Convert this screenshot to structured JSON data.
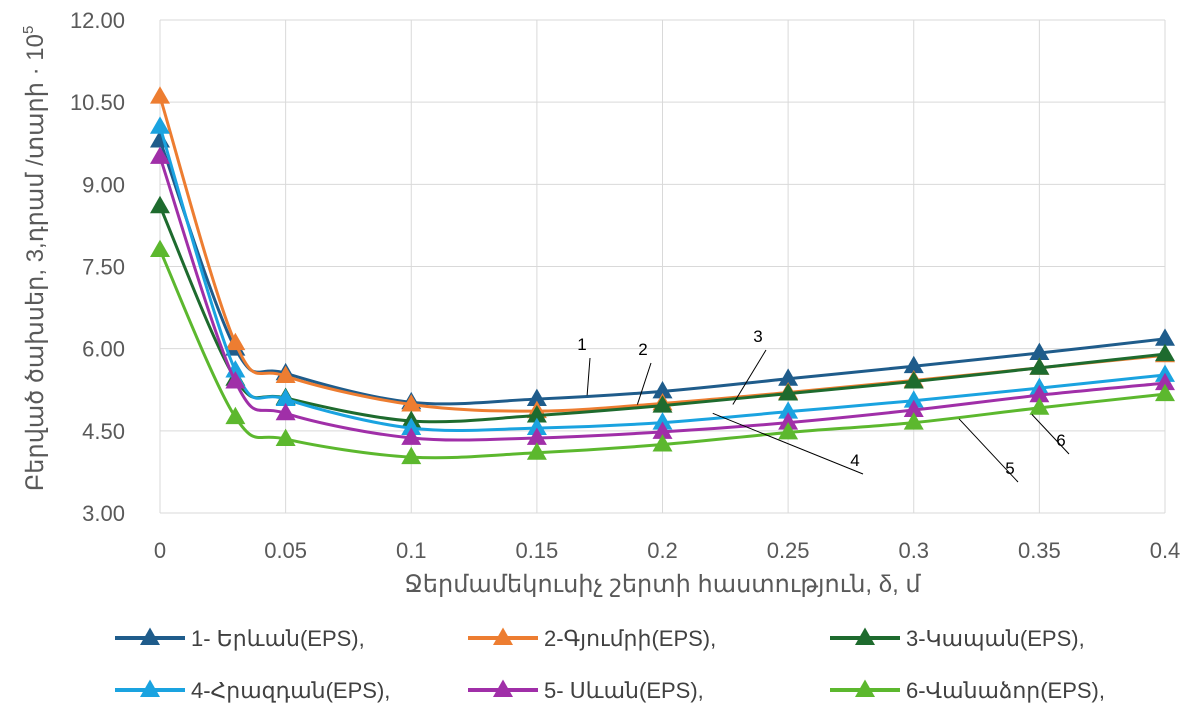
{
  "chart_data": {
    "type": "line",
    "xlabel": "Ջերմամեկուսիչ շերտի հաստություն, δ, մ",
    "ylabel": "Բերված ծախսեր, 3,դրամ /տարի · 10",
    "ylabel_exponent": "5",
    "xlim": [
      0,
      0.4
    ],
    "ylim": [
      3.0,
      12.0
    ],
    "x_ticks": [
      "0",
      "0.05",
      "0.1",
      "0.15",
      "0.2",
      "0.25",
      "0.3",
      "0.35",
      "0.4"
    ],
    "y_ticks": [
      "3.00",
      "4.50",
      "6.00",
      "7.50",
      "9.00",
      "10.50",
      "12.00"
    ],
    "grid": "on",
    "legend_position": "bottom",
    "x": [
      0,
      0.03,
      0.05,
      0.1,
      0.15,
      0.2,
      0.25,
      0.3,
      0.35,
      0.4
    ],
    "series": [
      {
        "name": "1- Երևան(EPS),",
        "color": "#1f5c8b",
        "values": [
          9.8,
          6.0,
          5.55,
          5.02,
          5.08,
          5.22,
          5.45,
          5.68,
          5.92,
          6.18
        ]
      },
      {
        "name": "2-Գյումրի(EPS),",
        "color": "#ed7d31",
        "values": [
          10.6,
          6.1,
          5.5,
          4.98,
          4.86,
          5.0,
          5.2,
          5.42,
          5.65,
          5.88
        ]
      },
      {
        "name": "3-Կապան(EPS),",
        "color": "#1e6b2e",
        "values": [
          8.6,
          5.45,
          5.1,
          4.68,
          4.78,
          4.96,
          5.18,
          5.4,
          5.65,
          5.9
        ]
      },
      {
        "name": "4-Հրազդան(EPS),",
        "color": "#1aa3e0",
        "values": [
          10.05,
          5.6,
          5.08,
          4.55,
          4.55,
          4.65,
          4.85,
          5.05,
          5.28,
          5.52
        ]
      },
      {
        "name": "5- Սևան(EPS),",
        "color": "#a02fa8",
        "values": [
          9.5,
          5.4,
          4.82,
          4.37,
          4.37,
          4.48,
          4.65,
          4.88,
          5.15,
          5.37
        ]
      },
      {
        "name": "6-Վանաձոր(EPS),",
        "color": "#5cb82e",
        "values": [
          7.8,
          4.75,
          4.35,
          4.02,
          4.1,
          4.25,
          4.47,
          4.65,
          4.92,
          5.17
        ]
      }
    ],
    "annotations": [
      {
        "text": "1",
        "x": 0.17,
        "y": 5.15
      },
      {
        "text": "2",
        "x": 0.19,
        "y": 4.98
      },
      {
        "text": "3",
        "x": 0.228,
        "y": 4.98
      },
      {
        "text": "4",
        "x": 0.22,
        "y": 4.82
      },
      {
        "text": "5",
        "x": 0.318,
        "y": 4.72
      },
      {
        "text": "6",
        "x": 0.347,
        "y": 4.8
      }
    ]
  }
}
